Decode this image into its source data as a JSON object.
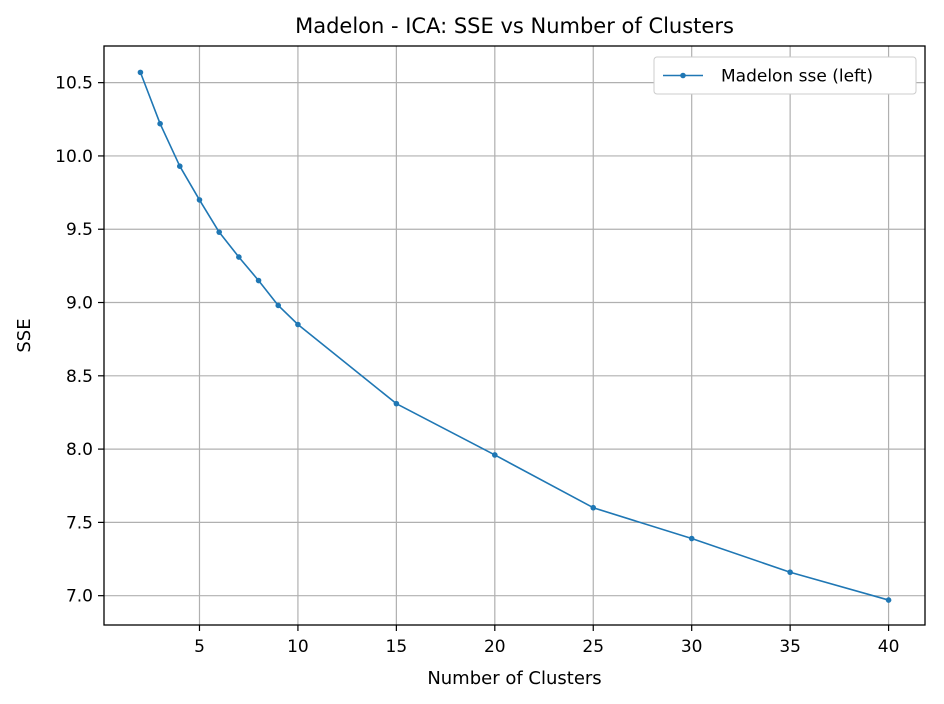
{
  "chart_data": {
    "type": "line",
    "title": "Madelon - ICA: SSE vs Number of Clusters",
    "xlabel": "Number of Clusters",
    "ylabel": "SSE",
    "xlim": [
      0.15,
      41.85
    ],
    "ylim": [
      6.8,
      10.75
    ],
    "xticks": [
      5,
      10,
      15,
      20,
      25,
      30,
      35,
      40
    ],
    "yticks": [
      7.0,
      7.5,
      8.0,
      8.5,
      9.0,
      9.5,
      10.0,
      10.5
    ],
    "grid": true,
    "legend": {
      "position": "top-right"
    },
    "x": [
      2,
      3,
      4,
      5,
      6,
      7,
      8,
      9,
      10,
      15,
      20,
      25,
      30,
      35,
      40
    ],
    "series": [
      {
        "name": "Madelon sse (left)",
        "color": "#1f77b4",
        "marker": "dot",
        "values": [
          10.57,
          10.22,
          9.93,
          9.7,
          9.48,
          9.31,
          9.15,
          8.98,
          8.85,
          8.31,
          7.96,
          7.6,
          7.39,
          7.16,
          6.97
        ]
      }
    ]
  }
}
